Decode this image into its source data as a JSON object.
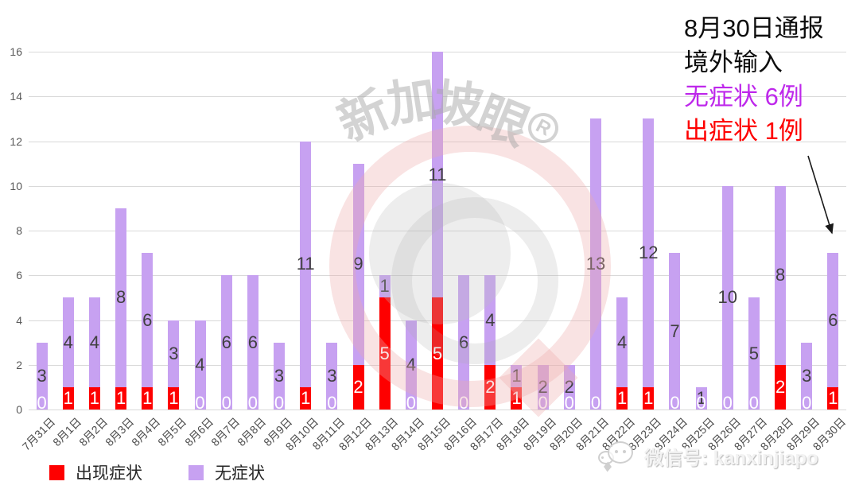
{
  "chart_data": {
    "type": "bar",
    "stacked": true,
    "categories": [
      "7月31日",
      "8月1日",
      "8月2日",
      "8月3日",
      "8月4日",
      "8月5日",
      "8月6日",
      "8月7日",
      "8月8日",
      "8月9日",
      "8月10日",
      "8月11日",
      "8月12日",
      "8月13日",
      "8月14日",
      "8月15日",
      "8月16日",
      "8月17日",
      "8月18日",
      "8月19日",
      "8月20日",
      "8月21日",
      "8月22日",
      "8月23日",
      "8月24日",
      "8月25日",
      "8月26日",
      "8月27日",
      "8月28日",
      "8月29日",
      "8月30日"
    ],
    "series": [
      {
        "name": "出现症状",
        "color": "#fe0000",
        "label_color": "#ffffff",
        "values": [
          0,
          1,
          1,
          1,
          1,
          1,
          0,
          0,
          0,
          0,
          1,
          0,
          2,
          5,
          0,
          5,
          0,
          2,
          1,
          0,
          0,
          0,
          1,
          1,
          0,
          0,
          0,
          0,
          2,
          0,
          1
        ]
      },
      {
        "name": "无症状",
        "color": "#c7a1f1",
        "label_color": "#404040",
        "values": [
          3,
          4,
          4,
          8,
          6,
          3,
          4,
          6,
          6,
          3,
          11,
          3,
          9,
          1,
          4,
          11,
          6,
          4,
          1,
          2,
          2,
          13,
          4,
          12,
          7,
          1,
          10,
          5,
          8,
          3,
          6
        ]
      }
    ],
    "ylim": [
      0,
      16
    ],
    "yticks": [
      0,
      2,
      4,
      6,
      8,
      10,
      12,
      14,
      16
    ],
    "grid": true,
    "legend_position": "bottom-left",
    "data_labels": true
  },
  "annotation": {
    "lines": [
      {
        "text": "8月30日通报",
        "color": "#0d0d0d"
      },
      {
        "text": "境外输入",
        "color": "#0d0d0d"
      },
      {
        "text": "无症状 6例",
        "color": "#be28eb"
      },
      {
        "text": "出症状 1例",
        "color": "#fe0000"
      }
    ]
  },
  "legend": {
    "items": [
      {
        "label": "出现症状",
        "color": "#fe0000"
      },
      {
        "label": "无症状",
        "color": "#c7a1f1"
      }
    ]
  },
  "watermark": {
    "text": "新加坡眼",
    "registered": "R"
  },
  "footer": {
    "wechat_label": "微信号: kanxinjiapo"
  }
}
